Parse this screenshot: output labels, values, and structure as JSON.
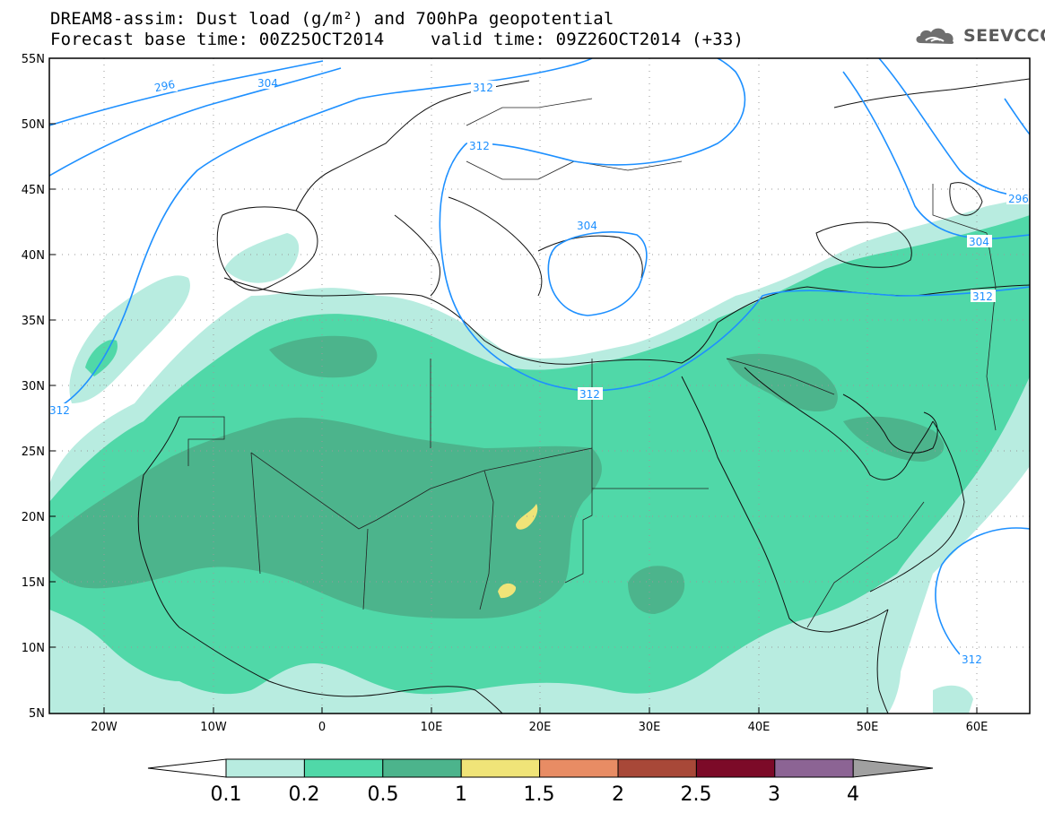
{
  "header": {
    "title_line1": "DREAM8-assim: Dust load (g/m²) and 700hPa geopotential",
    "title_line2": "Forecast base time: 00Z25OCT2014",
    "valid_time": "valid time: 09Z26OCT2014 (+33)",
    "logo_text": "SEEVCCC"
  },
  "map": {
    "lat_labels": [
      "55N",
      "50N",
      "45N",
      "40N",
      "35N",
      "30N",
      "25N",
      "20N",
      "15N",
      "10N",
      "5N"
    ],
    "lon_labels": [
      "20W",
      "10W",
      "0",
      "10E",
      "20E",
      "30E",
      "40E",
      "50E",
      "60E"
    ],
    "contour_labels": {
      "c296": "296",
      "c304": "304",
      "c312": "312"
    },
    "contour_color": "#1e90ff"
  },
  "colorbar": {
    "labels": [
      "0.1",
      "0.2",
      "0.5",
      "1",
      "1.5",
      "2",
      "2.5",
      "3",
      "4"
    ],
    "colors": [
      "#ffffff",
      "#b8ece0",
      "#50d8a8",
      "#4cb48c",
      "#f0e478",
      "#e88c64",
      "#a84838",
      "#7c0a28",
      "#8c6494",
      "#a0a0a0"
    ]
  }
}
